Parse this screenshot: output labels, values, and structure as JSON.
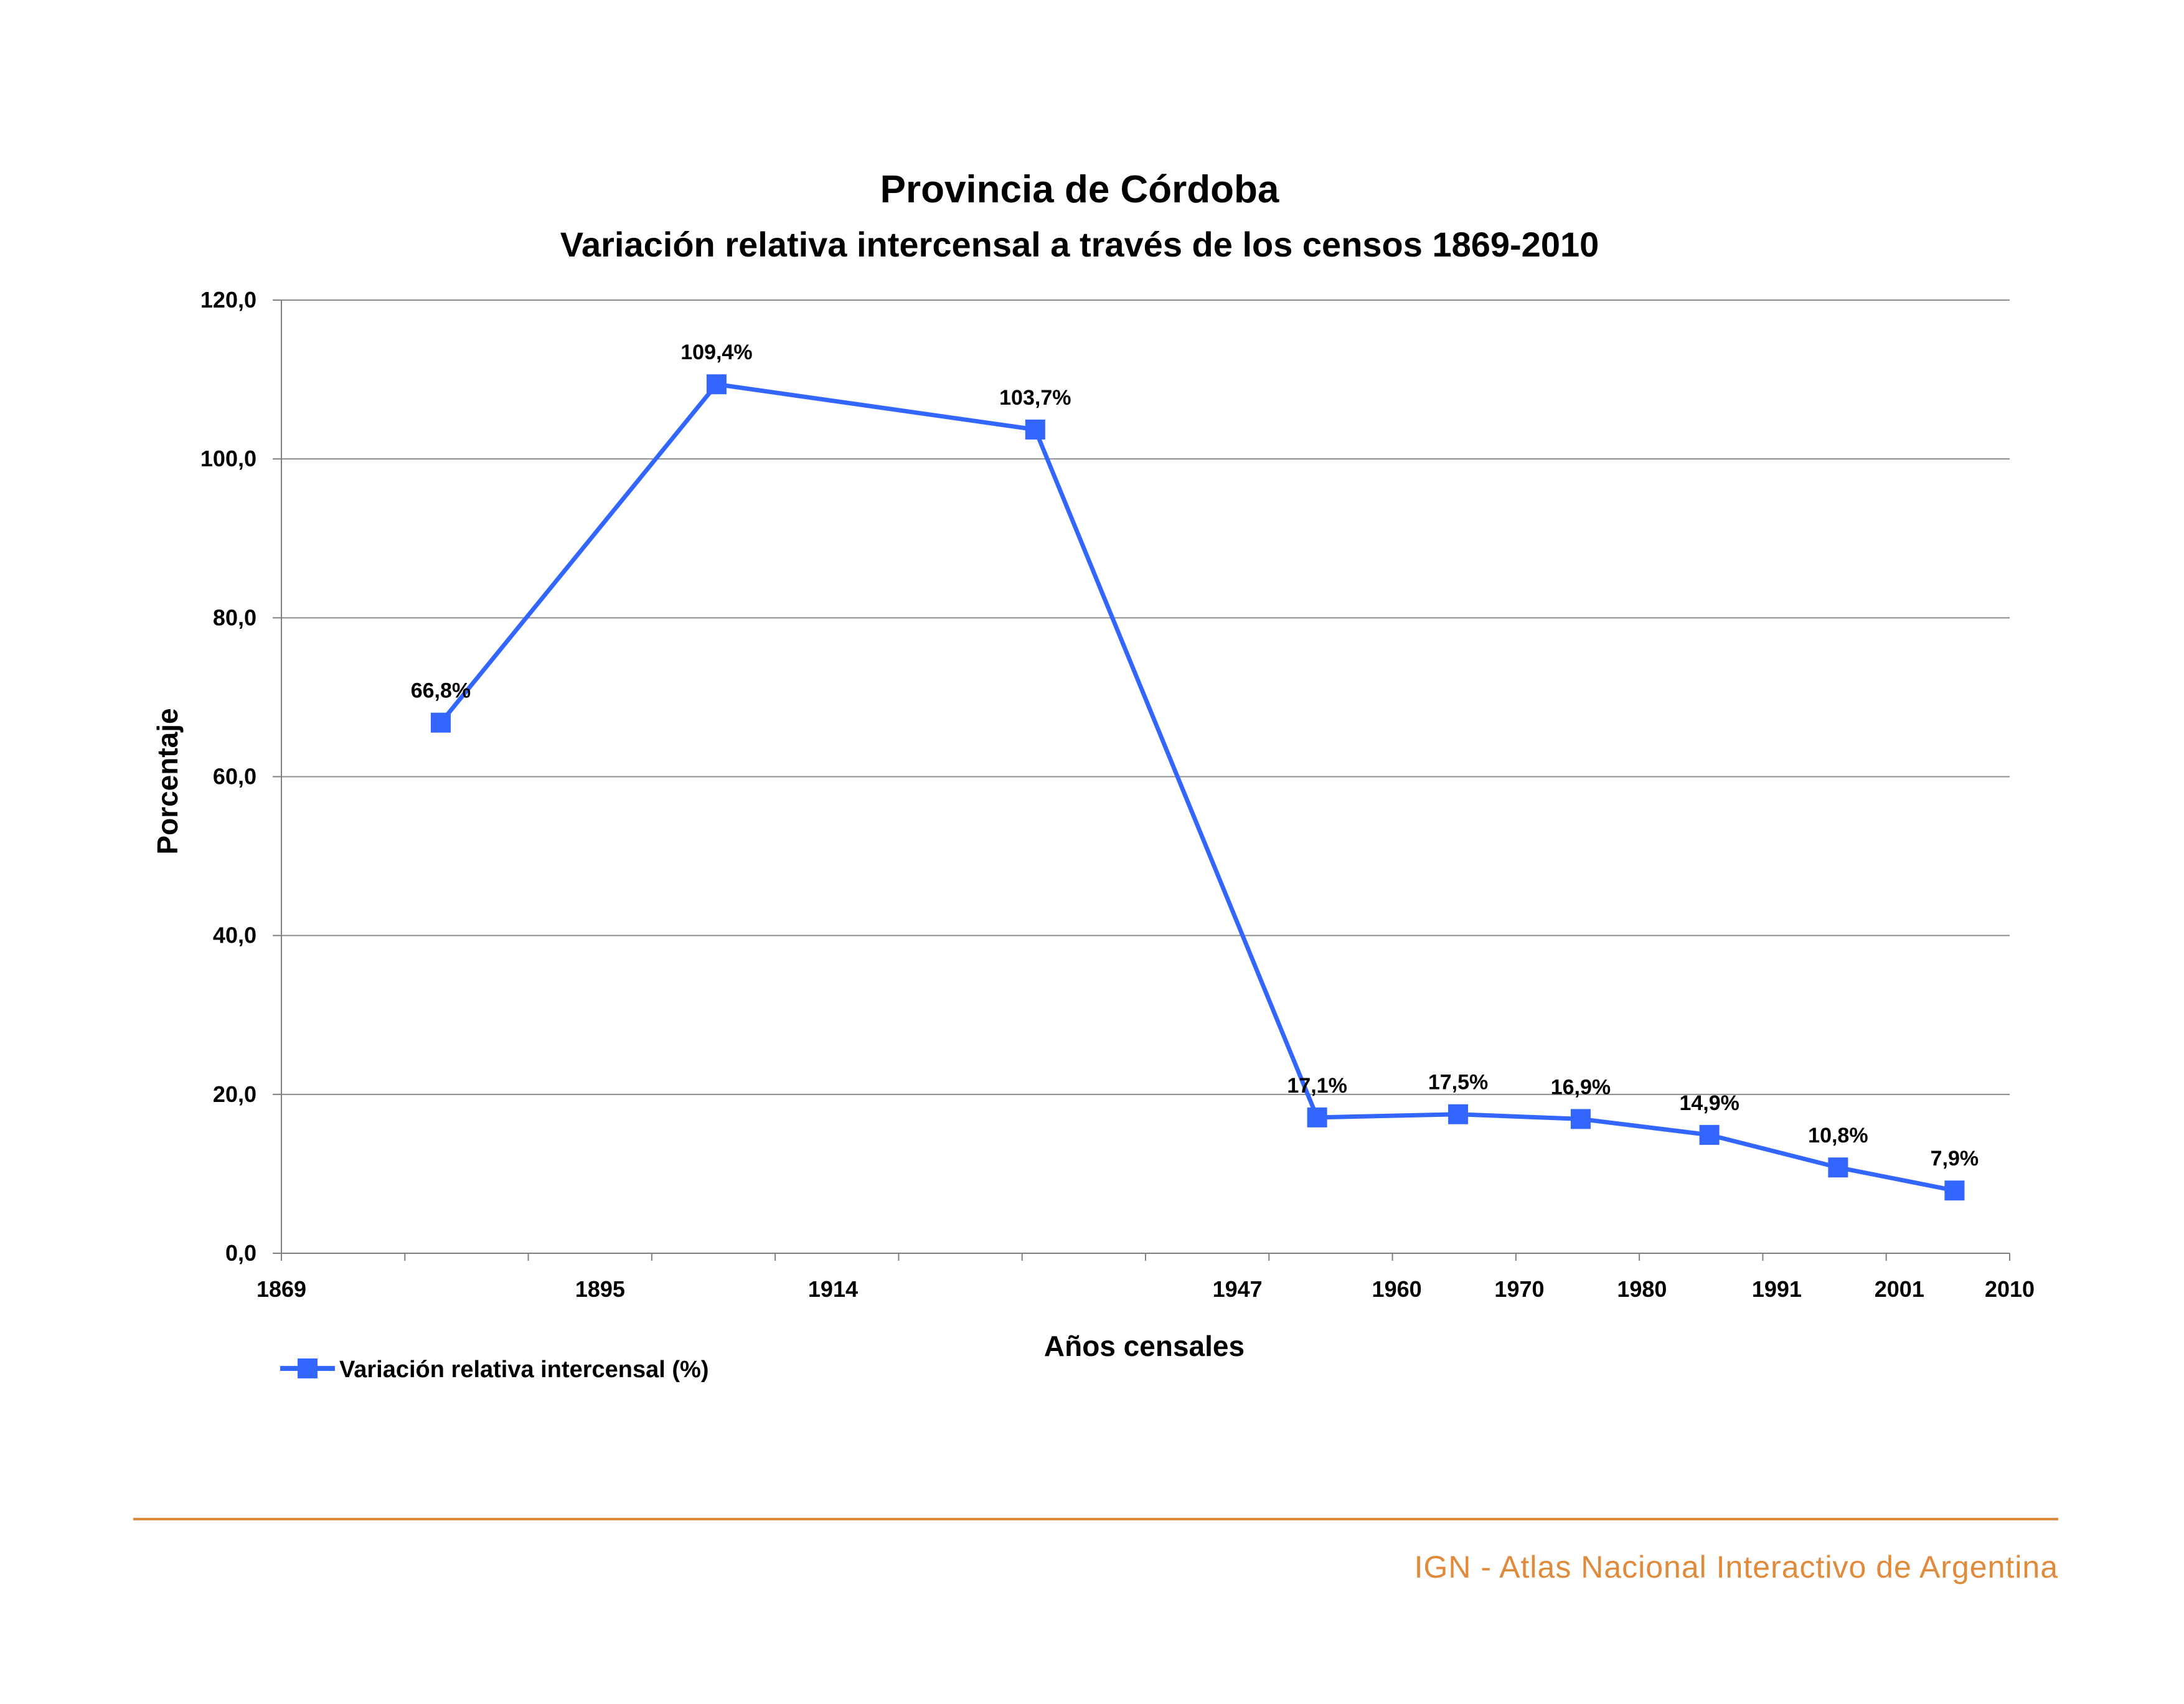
{
  "chart_data": {
    "type": "line",
    "title": "Provincia de Córdoba",
    "subtitle": "Variación relativa intercensal a través de los censos 1869-2010",
    "xlabel": "Años censales",
    "ylabel": "Porcentaje",
    "x_ticks": [
      "1869",
      "1895",
      "1914",
      "1947",
      "1960",
      "1970",
      "1980",
      "1991",
      "2001",
      "2010"
    ],
    "y_ticks": [
      "0,0",
      "20,0",
      "40,0",
      "60,0",
      "80,0",
      "100,0",
      "120,0"
    ],
    "ylim": [
      0,
      120
    ],
    "grid": true,
    "legend_position": "bottom-left",
    "series": [
      {
        "name": "Variación relativa intercensal (%)",
        "color": "#3366ff",
        "x": [
          "1869-1895",
          "1895-1914",
          "1914-1947",
          "1947-1960",
          "1960-1970",
          "1970-1980",
          "1980-1991",
          "1991-2001",
          "2001-2010"
        ],
        "values": [
          66.8,
          109.4,
          103.7,
          17.1,
          17.5,
          16.9,
          14.9,
          10.8,
          7.9
        ],
        "labels": [
          "66,8%",
          "109,4%",
          "103,7%",
          "17,1%",
          "17,5%",
          "16,9%",
          "14,9%",
          "10,8%",
          "7,9%"
        ]
      }
    ]
  },
  "footer": {
    "credit": "IGN - Atlas Nacional Interactivo de Argentina",
    "accent_color": "#e08a3c"
  }
}
